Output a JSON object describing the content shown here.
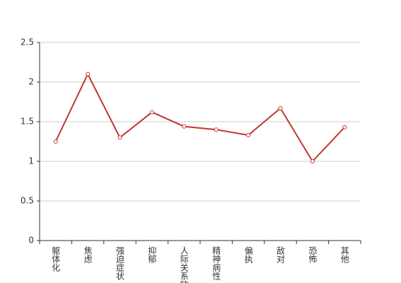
{
  "chart_data": {
    "type": "line",
    "categories": [
      "躯体化",
      "焦虑",
      "强迫症状",
      "抑郁",
      "人际关系敏感",
      "精神病性",
      "偏执",
      "敌对",
      "恐怖",
      "其他"
    ],
    "values": [
      1.25,
      2.1,
      1.3,
      1.62,
      1.44,
      1.4,
      1.33,
      1.67,
      1.0,
      1.43
    ],
    "color": "#c23531",
    "ylim": [
      0,
      2.5
    ],
    "yticks": [
      0,
      0.5,
      1,
      1.5,
      2,
      2.5
    ],
    "grid": true
  }
}
